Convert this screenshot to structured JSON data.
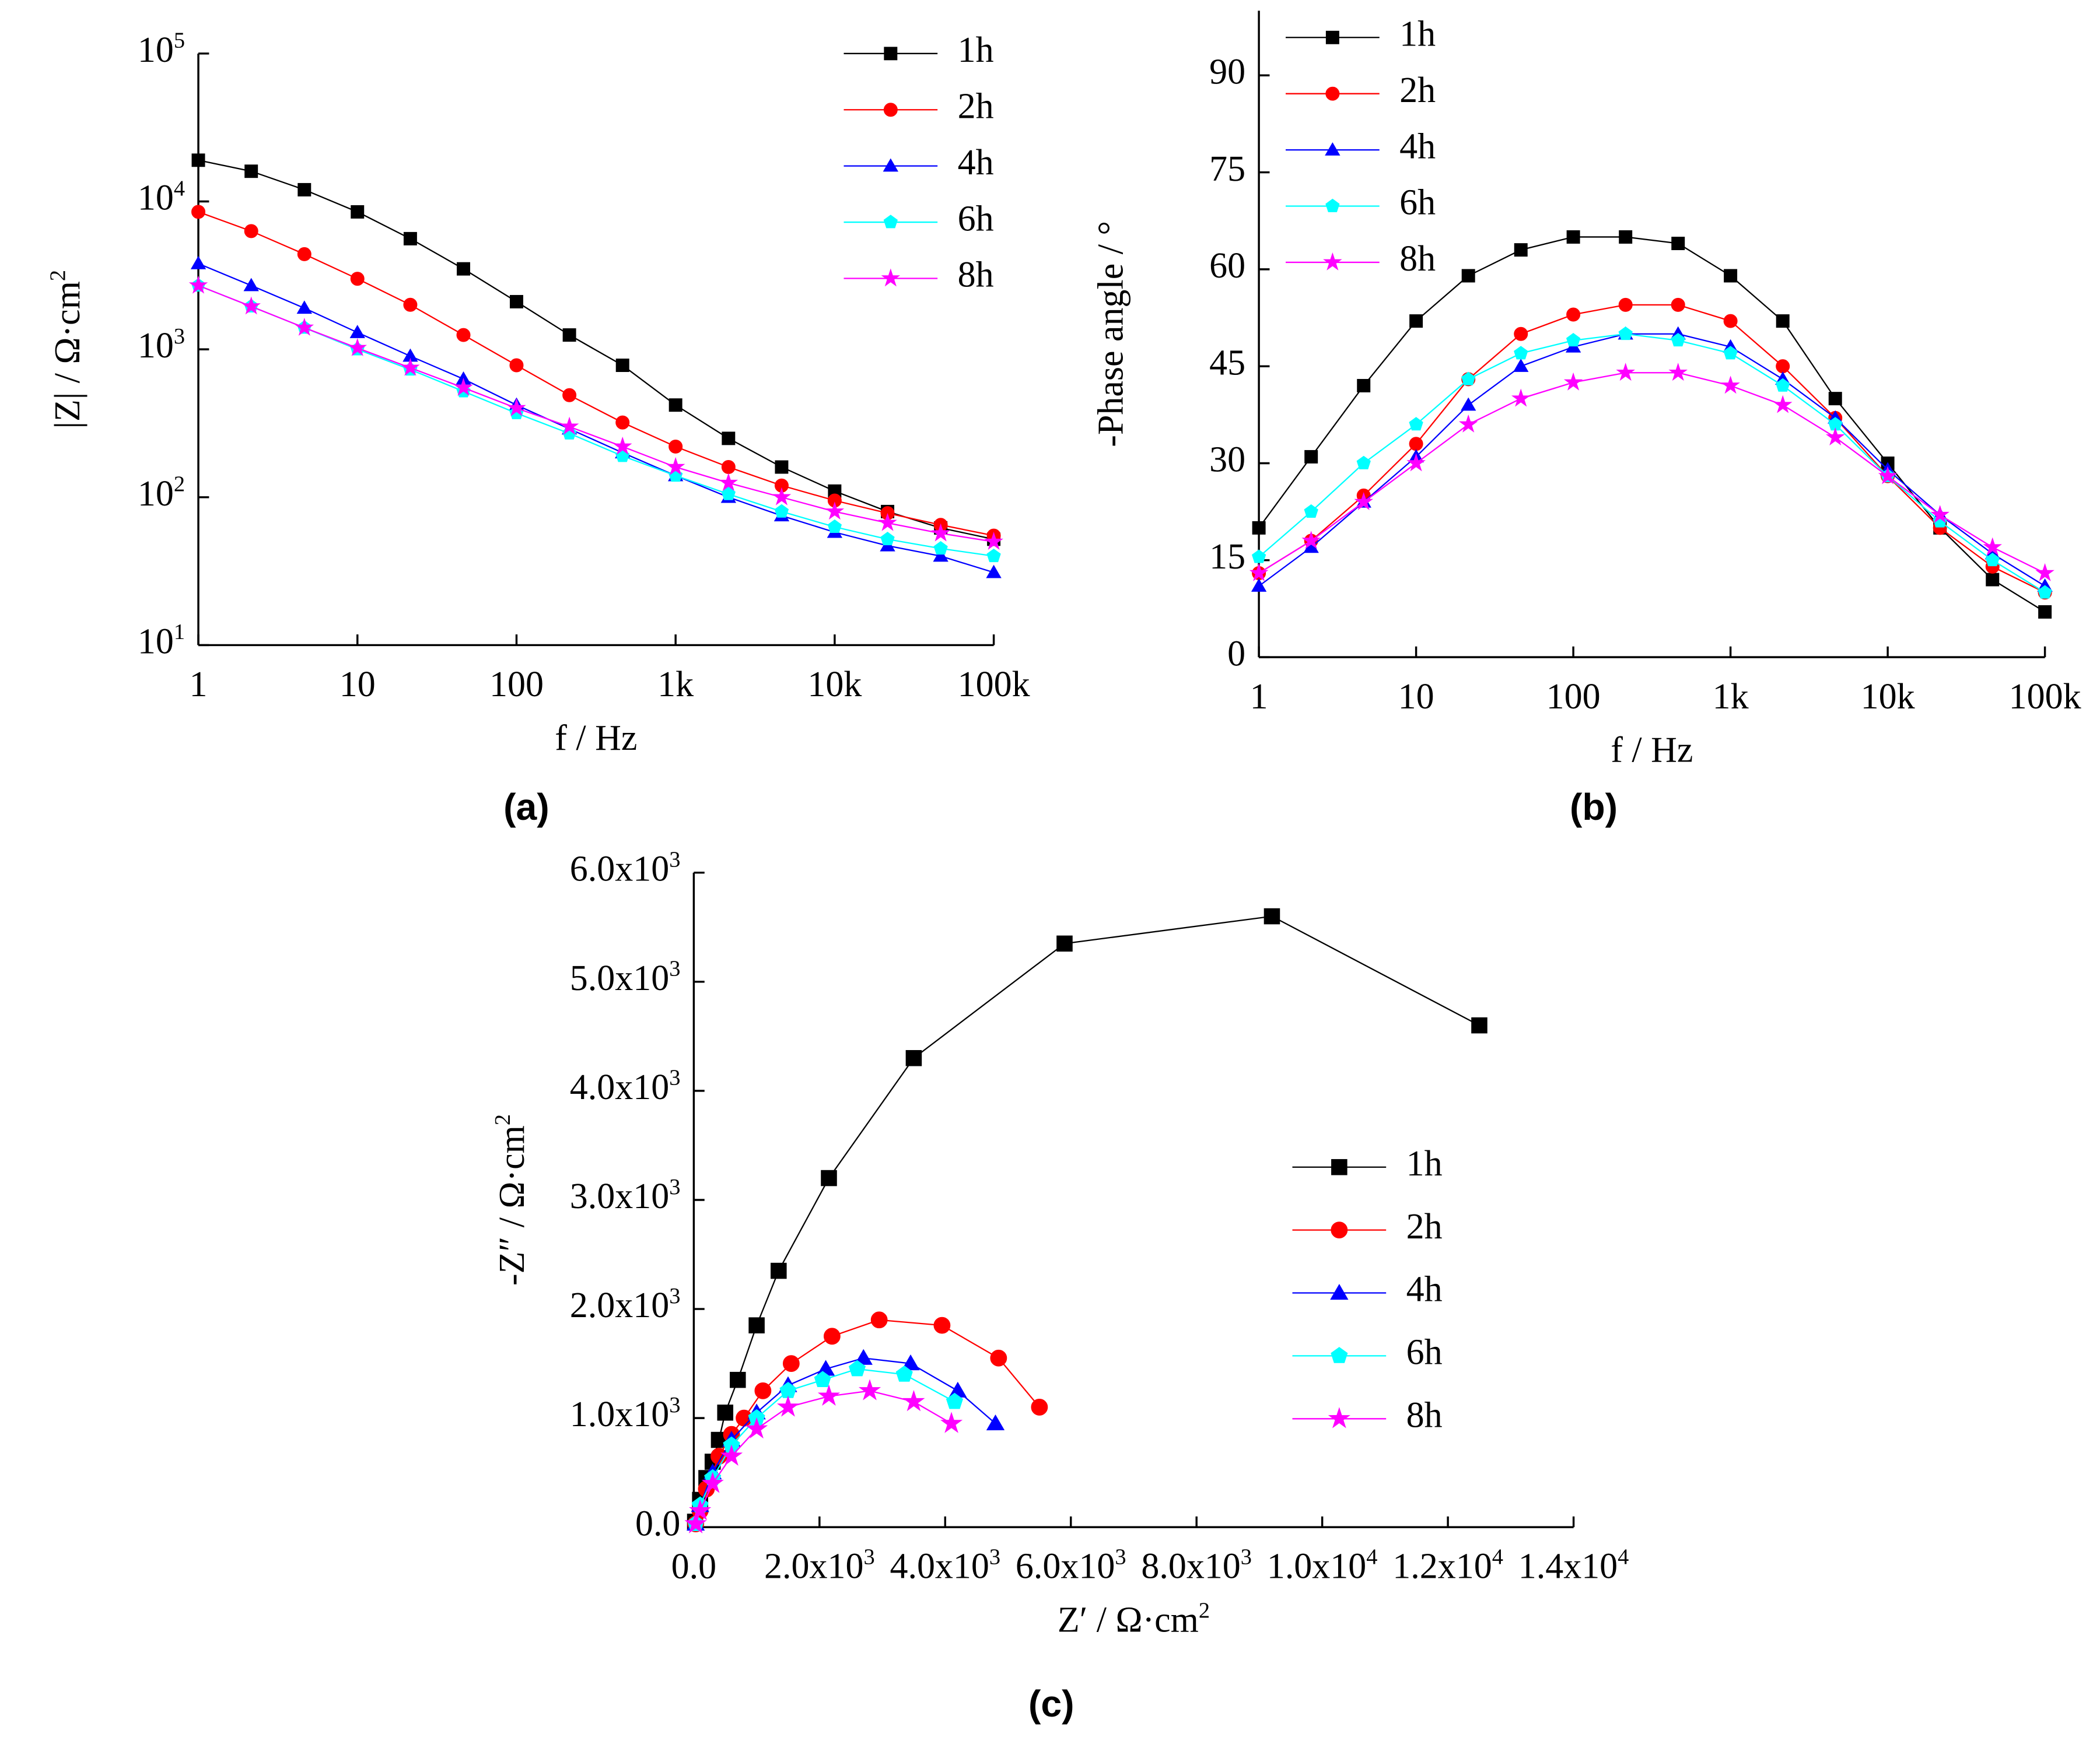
{
  "chart_data": [
    {
      "type": "line",
      "label": "(a)",
      "x_label": "f / Hz",
      "y_label": "|Z| / Ω·cm^2",
      "log_x": true,
      "log_y": true,
      "legend": "upper right",
      "x": [
        1,
        2.15,
        4.64,
        10,
        21.5,
        46.4,
        100,
        215,
        464,
        1000,
        2150,
        4640,
        10000,
        21500,
        46400,
        100000
      ],
      "xlim": [
        1,
        100000
      ],
      "xticks": [
        1,
        10,
        100,
        {
          "value": 1000,
          "label": "1k"
        },
        {
          "value": 10000,
          "label": "10k"
        },
        {
          "value": 100000,
          "label": "100k"
        }
      ],
      "ylim": [
        10,
        100000
      ],
      "yticks": [
        {
          "value": 10,
          "label": "10^1"
        },
        {
          "value": 100,
          "label": "10^2"
        },
        {
          "value": 1000,
          "label": "10^3"
        },
        {
          "value": 10000,
          "label": "10^4"
        },
        {
          "value": 100000,
          "label": "10^5"
        }
      ],
      "series": [
        {
          "name": "1h",
          "color": "#000000",
          "marker": "square",
          "values": [
            19000,
            16000,
            12000,
            8500,
            5600,
            3500,
            2100,
            1250,
            780,
            420,
            250,
            160,
            110,
            80,
            62,
            52
          ]
        },
        {
          "name": "2h",
          "color": "#ff0000",
          "marker": "circle",
          "values": [
            8500,
            6300,
            4400,
            3000,
            2000,
            1250,
            780,
            490,
            320,
            220,
            160,
            120,
            95,
            78,
            65,
            55
          ]
        },
        {
          "name": "4h",
          "color": "#0000ff",
          "marker": "triangle",
          "values": [
            3800,
            2700,
            1900,
            1300,
            900,
            630,
            420,
            290,
            200,
            140,
            100,
            75,
            58,
            47,
            40,
            31
          ]
        },
        {
          "name": "6h",
          "color": "#00ffff",
          "marker": "pentagon",
          "values": [
            2700,
            1950,
            1400,
            1000,
            730,
            520,
            370,
            270,
            190,
            140,
            105,
            80,
            63,
            52,
            45,
            40
          ]
        },
        {
          "name": "8h",
          "color": "#ff00ff",
          "marker": "star",
          "values": [
            2700,
            1950,
            1400,
            1020,
            750,
            550,
            400,
            300,
            220,
            160,
            125,
            100,
            80,
            67,
            57,
            50
          ]
        }
      ]
    },
    {
      "type": "line",
      "label": "(b)",
      "x_label": "f / Hz",
      "y_label": "-Phase angle / °",
      "log_x": true,
      "log_y": false,
      "legend": "upper left",
      "x": [
        1,
        2.15,
        4.64,
        10,
        21.5,
        46.4,
        100,
        215,
        464,
        1000,
        2150,
        4640,
        10000,
        21500,
        46400,
        100000
      ],
      "xlim": [
        1,
        100000
      ],
      "xticks": [
        1,
        10,
        100,
        {
          "value": 1000,
          "label": "1k"
        },
        {
          "value": 10000,
          "label": "10k"
        },
        {
          "value": 100000,
          "label": "100k"
        }
      ],
      "ylim": [
        0,
        100
      ],
      "yticks": [
        0,
        15,
        30,
        45,
        60,
        75,
        90
      ],
      "series": [
        {
          "name": "1h",
          "color": "#000000",
          "marker": "square",
          "values": [
            20,
            31,
            42,
            52,
            59,
            63,
            65,
            65,
            64,
            59,
            52,
            40,
            30,
            20,
            12,
            7
          ]
        },
        {
          "name": "2h",
          "color": "#ff0000",
          "marker": "circle",
          "values": [
            13,
            18,
            25,
            33,
            43,
            50,
            53,
            54.5,
            54.5,
            52,
            45,
            37,
            28,
            20,
            14,
            10
          ]
        },
        {
          "name": "4h",
          "color": "#0000ff",
          "marker": "triangle",
          "values": [
            11,
            17,
            24,
            31,
            39,
            45,
            48,
            50,
            50,
            48,
            43,
            37,
            29,
            22,
            16,
            11
          ]
        },
        {
          "name": "6h",
          "color": "#00ffff",
          "marker": "pentagon",
          "values": [
            15.5,
            22.5,
            30,
            36,
            43,
            47,
            49,
            50,
            49,
            47,
            42,
            36,
            28,
            21,
            15,
            10
          ]
        },
        {
          "name": "8h",
          "color": "#ff00ff",
          "marker": "star",
          "values": [
            13,
            18,
            24,
            30,
            36,
            40,
            42.5,
            44,
            44,
            42,
            39,
            34,
            28,
            22,
            17,
            13
          ]
        }
      ]
    },
    {
      "type": "scatter",
      "label": "(c)",
      "x_label": "Z′ / Ω·cm^2",
      "y_label": "-Z″ / Ω·cm^2",
      "log_x": false,
      "log_y": false,
      "legend": "center right",
      "xlim": [
        0,
        14000
      ],
      "xticks": [
        {
          "value": 0,
          "label": "0.0"
        },
        {
          "value": 2000,
          "label": "2.0x10^3"
        },
        {
          "value": 4000,
          "label": "4.0x10^3"
        },
        {
          "value": 6000,
          "label": "6.0x10^3"
        },
        {
          "value": 8000,
          "label": "8.0x10^3"
        },
        {
          "value": 10000,
          "label": "1.0x10^4"
        },
        {
          "value": 12000,
          "label": "1.2x10^4"
        },
        {
          "value": 14000,
          "label": "1.4x10^4"
        }
      ],
      "ylim": [
        0,
        6000
      ],
      "yticks": [
        {
          "value": 0,
          "label": "0.0"
        },
        {
          "value": 1000,
          "label": "1.0x10^3"
        },
        {
          "value": 2000,
          "label": "2.0x10^3"
        },
        {
          "value": 3000,
          "label": "3.0x10^3"
        },
        {
          "value": 4000,
          "label": "4.0x10^3"
        },
        {
          "value": 5000,
          "label": "5.0x10^3"
        },
        {
          "value": 6000,
          "label": "6.0x10^3"
        }
      ],
      "series": [
        {
          "name": "1h",
          "color": "#000000",
          "marker": "square",
          "x": [
            20,
            100,
            200,
            300,
            400,
            500,
            700,
            1000,
            1350,
            2150,
            3500,
            5900,
            9200,
            12500
          ],
          "values": [
            50,
            250,
            450,
            600,
            800,
            1050,
            1350,
            1850,
            2350,
            3200,
            4300,
            5350,
            5600,
            4600
          ]
        },
        {
          "name": "2h",
          "color": "#ff0000",
          "marker": "circle",
          "x": [
            30,
            100,
            200,
            400,
            600,
            800,
            1100,
            1550,
            2200,
            2950,
            3950,
            4850,
            5500
          ],
          "values": [
            30,
            150,
            350,
            650,
            850,
            1000,
            1250,
            1500,
            1750,
            1900,
            1850,
            1550,
            1100
          ]
        },
        {
          "name": "4h",
          "color": "#0000ff",
          "marker": "triangle",
          "x": [
            30,
            100,
            300,
            600,
            1000,
            1500,
            2100,
            2700,
            3450,
            4200,
            4800
          ],
          "values": [
            30,
            200,
            500,
            800,
            1050,
            1300,
            1450,
            1550,
            1500,
            1250,
            950
          ]
        },
        {
          "name": "6h",
          "color": "#00ffff",
          "marker": "pentagon",
          "x": [
            30,
            100,
            300,
            600,
            1000,
            1500,
            2050,
            2600,
            3350,
            4150
          ],
          "values": [
            30,
            200,
            450,
            750,
            1000,
            1250,
            1350,
            1450,
            1400,
            1150
          ]
        },
        {
          "name": "8h",
          "color": "#ff00ff",
          "marker": "star",
          "x": [
            30,
            100,
            300,
            600,
            1000,
            1500,
            2150,
            2800,
            3500,
            4100
          ],
          "values": [
            30,
            150,
            400,
            650,
            900,
            1100,
            1200,
            1250,
            1150,
            950
          ]
        }
      ]
    }
  ]
}
